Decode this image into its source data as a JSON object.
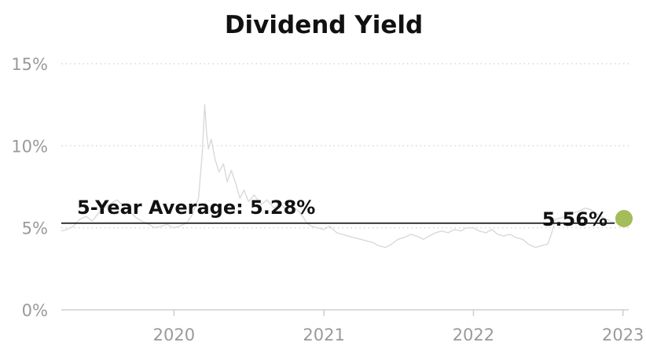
{
  "chart_data": {
    "type": "line",
    "title": "Dividend Yield",
    "ylim": [
      0,
      15
    ],
    "yticks": [
      {
        "value": 0,
        "label": "0%"
      },
      {
        "value": 5,
        "label": "5%"
      },
      {
        "value": 10,
        "label": "10%"
      },
      {
        "value": 15,
        "label": "15%"
      }
    ],
    "xlim": [
      "2019-04-01",
      "2023-01-15"
    ],
    "xticks": [
      {
        "value": "2020-01-01",
        "label": "2020"
      },
      {
        "value": "2021-01-01",
        "label": "2021"
      },
      {
        "value": "2022-01-01",
        "label": "2022"
      },
      {
        "value": "2023-01-01",
        "label": "2023"
      }
    ],
    "grid": true,
    "series": [
      {
        "color": "#d9d9d9",
        "points": [
          [
            "2019-04-01",
            4.8
          ],
          [
            "2019-04-15",
            4.9
          ],
          [
            "2019-05-01",
            5.1
          ],
          [
            "2019-05-15",
            5.5
          ],
          [
            "2019-06-01",
            5.7
          ],
          [
            "2019-06-15",
            5.4
          ],
          [
            "2019-07-01",
            5.9
          ],
          [
            "2019-07-15",
            6.2
          ],
          [
            "2019-08-01",
            6.5
          ],
          [
            "2019-08-15",
            6.7
          ],
          [
            "2019-09-01",
            6.3
          ],
          [
            "2019-09-15",
            6.0
          ],
          [
            "2019-10-01",
            5.6
          ],
          [
            "2019-10-15",
            5.4
          ],
          [
            "2019-11-01",
            5.2
          ],
          [
            "2019-11-15",
            5.0
          ],
          [
            "2019-12-01",
            5.1
          ],
          [
            "2019-12-15",
            5.2
          ],
          [
            "2020-01-01",
            5.0
          ],
          [
            "2020-01-15",
            5.1
          ],
          [
            "2020-02-01",
            5.3
          ],
          [
            "2020-02-15",
            5.8
          ],
          [
            "2020-03-01",
            6.8
          ],
          [
            "2020-03-10",
            9.5
          ],
          [
            "2020-03-16",
            12.5
          ],
          [
            "2020-03-20",
            11.0
          ],
          [
            "2020-03-25",
            9.8
          ],
          [
            "2020-04-01",
            10.4
          ],
          [
            "2020-04-10",
            9.2
          ],
          [
            "2020-04-20",
            8.4
          ],
          [
            "2020-05-01",
            8.9
          ],
          [
            "2020-05-10",
            7.8
          ],
          [
            "2020-05-20",
            8.5
          ],
          [
            "2020-06-01",
            7.6
          ],
          [
            "2020-06-10",
            6.8
          ],
          [
            "2020-06-20",
            7.3
          ],
          [
            "2020-07-01",
            6.6
          ],
          [
            "2020-07-15",
            7.0
          ],
          [
            "2020-08-01",
            6.4
          ],
          [
            "2020-08-15",
            6.7
          ],
          [
            "2020-09-01",
            6.2
          ],
          [
            "2020-09-15",
            6.5
          ],
          [
            "2020-10-01",
            6.1
          ],
          [
            "2020-10-15",
            6.3
          ],
          [
            "2020-11-01",
            6.0
          ],
          [
            "2020-11-10",
            5.7
          ],
          [
            "2020-11-20",
            5.3
          ],
          [
            "2020-12-01",
            5.1
          ],
          [
            "2020-12-15",
            5.0
          ],
          [
            "2021-01-01",
            4.9
          ],
          [
            "2021-01-15",
            5.1
          ],
          [
            "2021-02-01",
            4.7
          ],
          [
            "2021-02-15",
            4.6
          ],
          [
            "2021-03-01",
            4.5
          ],
          [
            "2021-03-15",
            4.4
          ],
          [
            "2021-04-01",
            4.3
          ],
          [
            "2021-04-15",
            4.2
          ],
          [
            "2021-05-01",
            4.1
          ],
          [
            "2021-05-15",
            3.9
          ],
          [
            "2021-06-01",
            3.8
          ],
          [
            "2021-06-15",
            4.0
          ],
          [
            "2021-07-01",
            4.3
          ],
          [
            "2021-07-15",
            4.4
          ],
          [
            "2021-08-01",
            4.6
          ],
          [
            "2021-08-15",
            4.5
          ],
          [
            "2021-09-01",
            4.3
          ],
          [
            "2021-09-15",
            4.5
          ],
          [
            "2021-10-01",
            4.7
          ],
          [
            "2021-10-15",
            4.8
          ],
          [
            "2021-11-01",
            4.7
          ],
          [
            "2021-11-15",
            4.9
          ],
          [
            "2021-12-01",
            4.8
          ],
          [
            "2021-12-15",
            5.0
          ],
          [
            "2022-01-01",
            5.0
          ],
          [
            "2022-01-15",
            4.8
          ],
          [
            "2022-02-01",
            4.7
          ],
          [
            "2022-02-15",
            4.9
          ],
          [
            "2022-03-01",
            4.6
          ],
          [
            "2022-03-15",
            4.5
          ],
          [
            "2022-04-01",
            4.6
          ],
          [
            "2022-04-15",
            4.4
          ],
          [
            "2022-05-01",
            4.3
          ],
          [
            "2022-05-15",
            4.0
          ],
          [
            "2022-06-01",
            3.8
          ],
          [
            "2022-06-15",
            3.9
          ],
          [
            "2022-07-01",
            4.0
          ],
          [
            "2022-07-10",
            4.6
          ],
          [
            "2022-07-20",
            5.5
          ],
          [
            "2022-08-01",
            5.6
          ],
          [
            "2022-08-15",
            5.7
          ],
          [
            "2022-09-01",
            5.9
          ],
          [
            "2022-09-15",
            6.0
          ],
          [
            "2022-10-01",
            6.2
          ],
          [
            "2022-10-15",
            6.1
          ],
          [
            "2022-11-01",
            5.8
          ],
          [
            "2022-11-15",
            5.6
          ],
          [
            "2022-12-01",
            5.4
          ],
          [
            "2022-12-15",
            5.3
          ],
          [
            "2023-01-01",
            5.4
          ],
          [
            "2023-01-15",
            5.56
          ]
        ]
      }
    ],
    "average": {
      "value": 5.28,
      "label": "5-Year Average: 5.28%",
      "color": "#111111"
    },
    "current": {
      "date": "2023-01-15",
      "value": 5.56,
      "label": "5.56%",
      "color": "#a3bd5a"
    }
  }
}
